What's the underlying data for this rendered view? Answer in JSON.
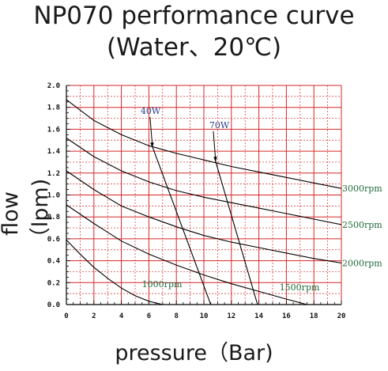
{
  "header": {
    "title_line1": "NP070 performance curve",
    "title_line2": "(Water、20℃)"
  },
  "chart_data": {
    "type": "line",
    "xlabel": "pressure（Bar)",
    "ylabel": "flow（lpm)",
    "xlim": [
      0,
      20
    ],
    "ylim": [
      0,
      2.0
    ],
    "x_ticks": [
      "0",
      "2",
      "4",
      "6",
      "8",
      "10",
      "12",
      "14",
      "16",
      "18",
      "20"
    ],
    "y_ticks": [
      "0.0",
      "0.2",
      "0.4",
      "0.6",
      "0.8",
      "1.0",
      "1.2",
      "1.4",
      "1.6",
      "1.8",
      "2.0"
    ],
    "grid": true,
    "grid_color": "#d62728",
    "line_color": "#000000",
    "series": [
      {
        "name": "3000rpm",
        "x": [
          0,
          2,
          4,
          6,
          8,
          10,
          12,
          14,
          16,
          18,
          20
        ],
        "y": [
          1.87,
          1.68,
          1.55,
          1.45,
          1.38,
          1.32,
          1.26,
          1.21,
          1.16,
          1.11,
          1.06
        ]
      },
      {
        "name": "2500rpm",
        "x": [
          0,
          2,
          4,
          6,
          8,
          10,
          12,
          14,
          16,
          18,
          20
        ],
        "y": [
          1.52,
          1.35,
          1.22,
          1.12,
          1.04,
          0.98,
          0.93,
          0.88,
          0.83,
          0.78,
          0.73
        ]
      },
      {
        "name": "2000rpm",
        "x": [
          0,
          2,
          4,
          6,
          8,
          10,
          12,
          14,
          16,
          18,
          20
        ],
        "y": [
          1.22,
          1.05,
          0.9,
          0.8,
          0.71,
          0.63,
          0.57,
          0.52,
          0.47,
          0.42,
          0.38
        ]
      },
      {
        "name": "1500rpm",
        "x": [
          0,
          2,
          4,
          6,
          8,
          10,
          12,
          14,
          16,
          17.5
        ],
        "y": [
          0.91,
          0.74,
          0.58,
          0.46,
          0.36,
          0.27,
          0.19,
          0.12,
          0.05,
          0.0
        ]
      },
      {
        "name": "1000rpm",
        "x": [
          0,
          1,
          2,
          3,
          4,
          5,
          6,
          7
        ],
        "y": [
          0.59,
          0.46,
          0.34,
          0.24,
          0.15,
          0.08,
          0.03,
          0.0
        ]
      }
    ],
    "power_lines": [
      {
        "name": "40W",
        "x": [
          6.2,
          10.5
        ],
        "y": [
          1.46,
          0.0
        ]
      },
      {
        "name": "70W",
        "x": [
          10.8,
          13.9
        ],
        "y": [
          1.33,
          0.0
        ]
      }
    ],
    "annotations": [
      "40W",
      "70W",
      "3000rpm",
      "2500rpm",
      "2000rpm",
      "1500rpm",
      "1000rpm"
    ]
  }
}
